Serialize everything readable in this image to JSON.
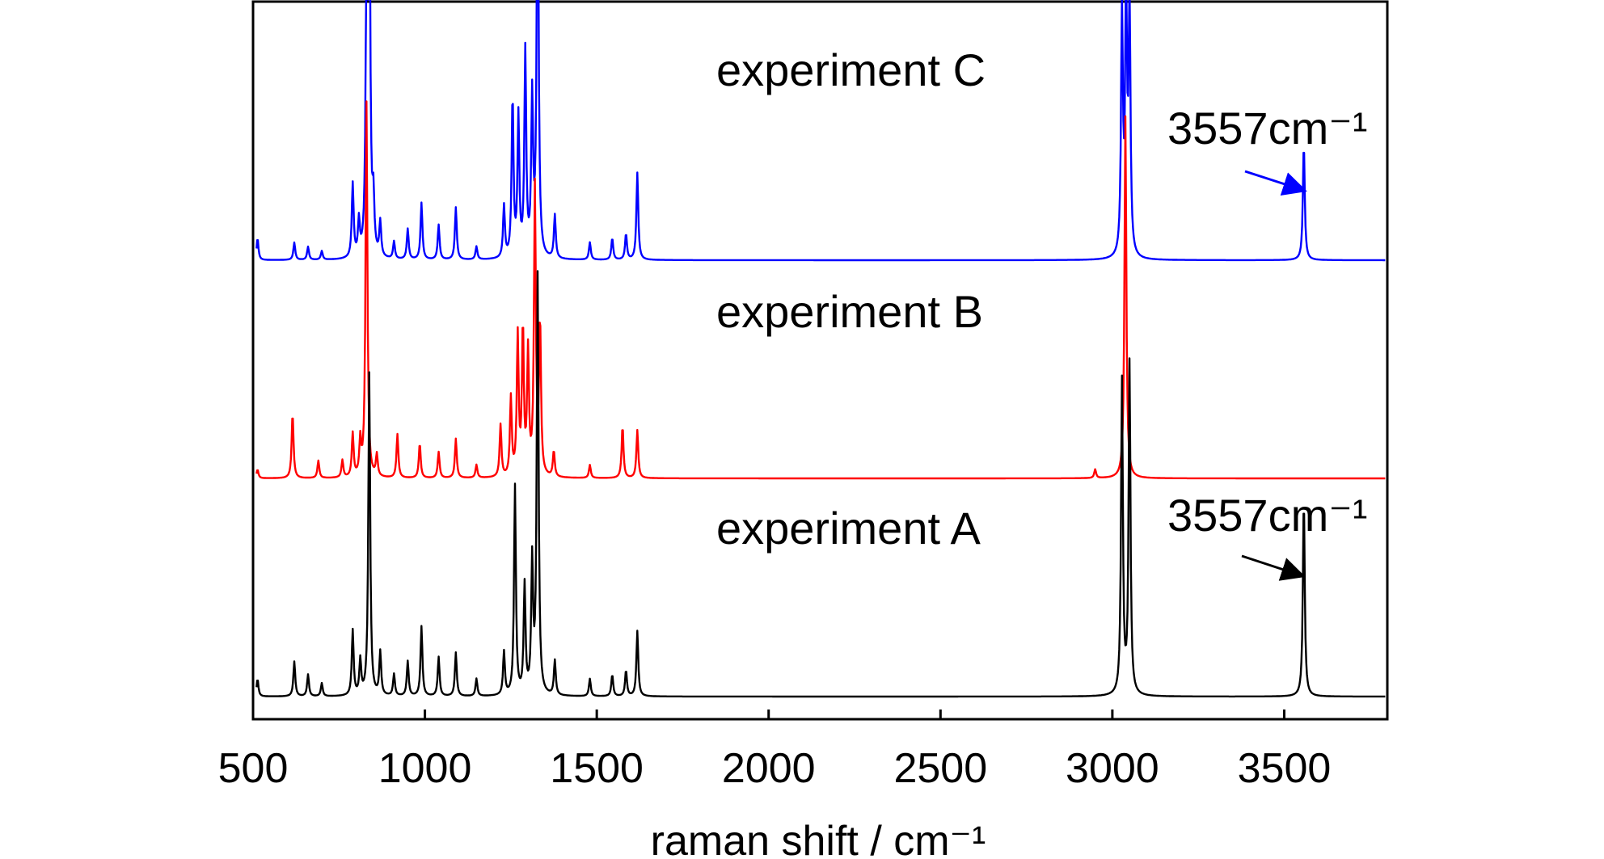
{
  "chart_data": {
    "type": "line",
    "title": "",
    "xlabel": "raman shift / cm⁻¹",
    "ylabel": "",
    "xlim": [
      500,
      3800
    ],
    "xticks": [
      500,
      1000,
      1500,
      2000,
      2500,
      3000,
      3500
    ],
    "x_tick_labels": [
      "500",
      "1000",
      "1500",
      "2000",
      "2500",
      "3000",
      "3500"
    ],
    "y_axis": "stacked spectra, arbitrary intensity, no tick labels",
    "grid": false,
    "legend": "none (series labelled in-plot)",
    "series": [
      {
        "name": "experiment C",
        "color": "#0000ff",
        "baseline": 1.0,
        "peaks": [
          [
            513,
            0.05
          ],
          [
            620,
            0.04
          ],
          [
            660,
            0.03
          ],
          [
            700,
            0.02
          ],
          [
            790,
            0.17
          ],
          [
            808,
            0.08
          ],
          [
            830,
            0.55
          ],
          [
            838,
            0.96
          ],
          [
            850,
            0.12
          ],
          [
            870,
            0.08
          ],
          [
            910,
            0.04
          ],
          [
            950,
            0.07
          ],
          [
            990,
            0.13
          ],
          [
            1040,
            0.08
          ],
          [
            1090,
            0.12
          ],
          [
            1150,
            0.03
          ],
          [
            1230,
            0.12
          ],
          [
            1255,
            0.37
          ],
          [
            1272,
            0.32
          ],
          [
            1292,
            0.47
          ],
          [
            1312,
            0.36
          ],
          [
            1328,
            1.0
          ],
          [
            1378,
            0.1
          ],
          [
            1480,
            0.04
          ],
          [
            1545,
            0.05
          ],
          [
            1585,
            0.06
          ],
          [
            1618,
            0.2
          ],
          [
            3028,
            0.56
          ],
          [
            3040,
            0.6
          ],
          [
            3050,
            0.58
          ],
          [
            3557,
            0.27
          ]
        ]
      },
      {
        "name": "experiment B",
        "color": "#ff0000",
        "baseline": 0.5,
        "peaks": [
          [
            513,
            0.02
          ],
          [
            615,
            0.15
          ],
          [
            690,
            0.04
          ],
          [
            760,
            0.04
          ],
          [
            790,
            0.1
          ],
          [
            812,
            0.08
          ],
          [
            830,
            0.86
          ],
          [
            860,
            0.05
          ],
          [
            920,
            0.1
          ],
          [
            985,
            0.08
          ],
          [
            1040,
            0.06
          ],
          [
            1090,
            0.09
          ],
          [
            1150,
            0.03
          ],
          [
            1220,
            0.12
          ],
          [
            1250,
            0.18
          ],
          [
            1270,
            0.32
          ],
          [
            1285,
            0.34
          ],
          [
            1300,
            0.28
          ],
          [
            1320,
            0.66
          ],
          [
            1335,
            0.35
          ],
          [
            1375,
            0.06
          ],
          [
            1480,
            0.03
          ],
          [
            1575,
            0.12
          ],
          [
            1618,
            0.11
          ],
          [
            2950,
            0.02
          ],
          [
            3038,
            0.83
          ]
        ]
      },
      {
        "name": "experiment A",
        "color": "#000000",
        "baseline": 0.0,
        "peaks": [
          [
            513,
            0.04
          ],
          [
            620,
            0.08
          ],
          [
            660,
            0.05
          ],
          [
            700,
            0.03
          ],
          [
            790,
            0.15
          ],
          [
            812,
            0.08
          ],
          [
            838,
            0.74
          ],
          [
            870,
            0.1
          ],
          [
            910,
            0.05
          ],
          [
            950,
            0.08
          ],
          [
            990,
            0.16
          ],
          [
            1040,
            0.09
          ],
          [
            1090,
            0.1
          ],
          [
            1150,
            0.04
          ],
          [
            1230,
            0.1
          ],
          [
            1262,
            0.48
          ],
          [
            1290,
            0.25
          ],
          [
            1312,
            0.3
          ],
          [
            1328,
            0.96
          ],
          [
            1378,
            0.08
          ],
          [
            1480,
            0.04
          ],
          [
            1545,
            0.05
          ],
          [
            1585,
            0.06
          ],
          [
            1618,
            0.15
          ],
          [
            3028,
            0.72
          ],
          [
            3050,
            0.76
          ],
          [
            3557,
            0.46
          ]
        ]
      }
    ],
    "series_labels": [
      "experiment C",
      "experiment B",
      "experiment A"
    ],
    "annotations": [
      {
        "text": "3557cm⁻¹",
        "series": "experiment C",
        "points_to_x": 3557
      },
      {
        "text": "3557cm⁻¹",
        "series": "experiment A",
        "points_to_x": 3557
      }
    ]
  }
}
